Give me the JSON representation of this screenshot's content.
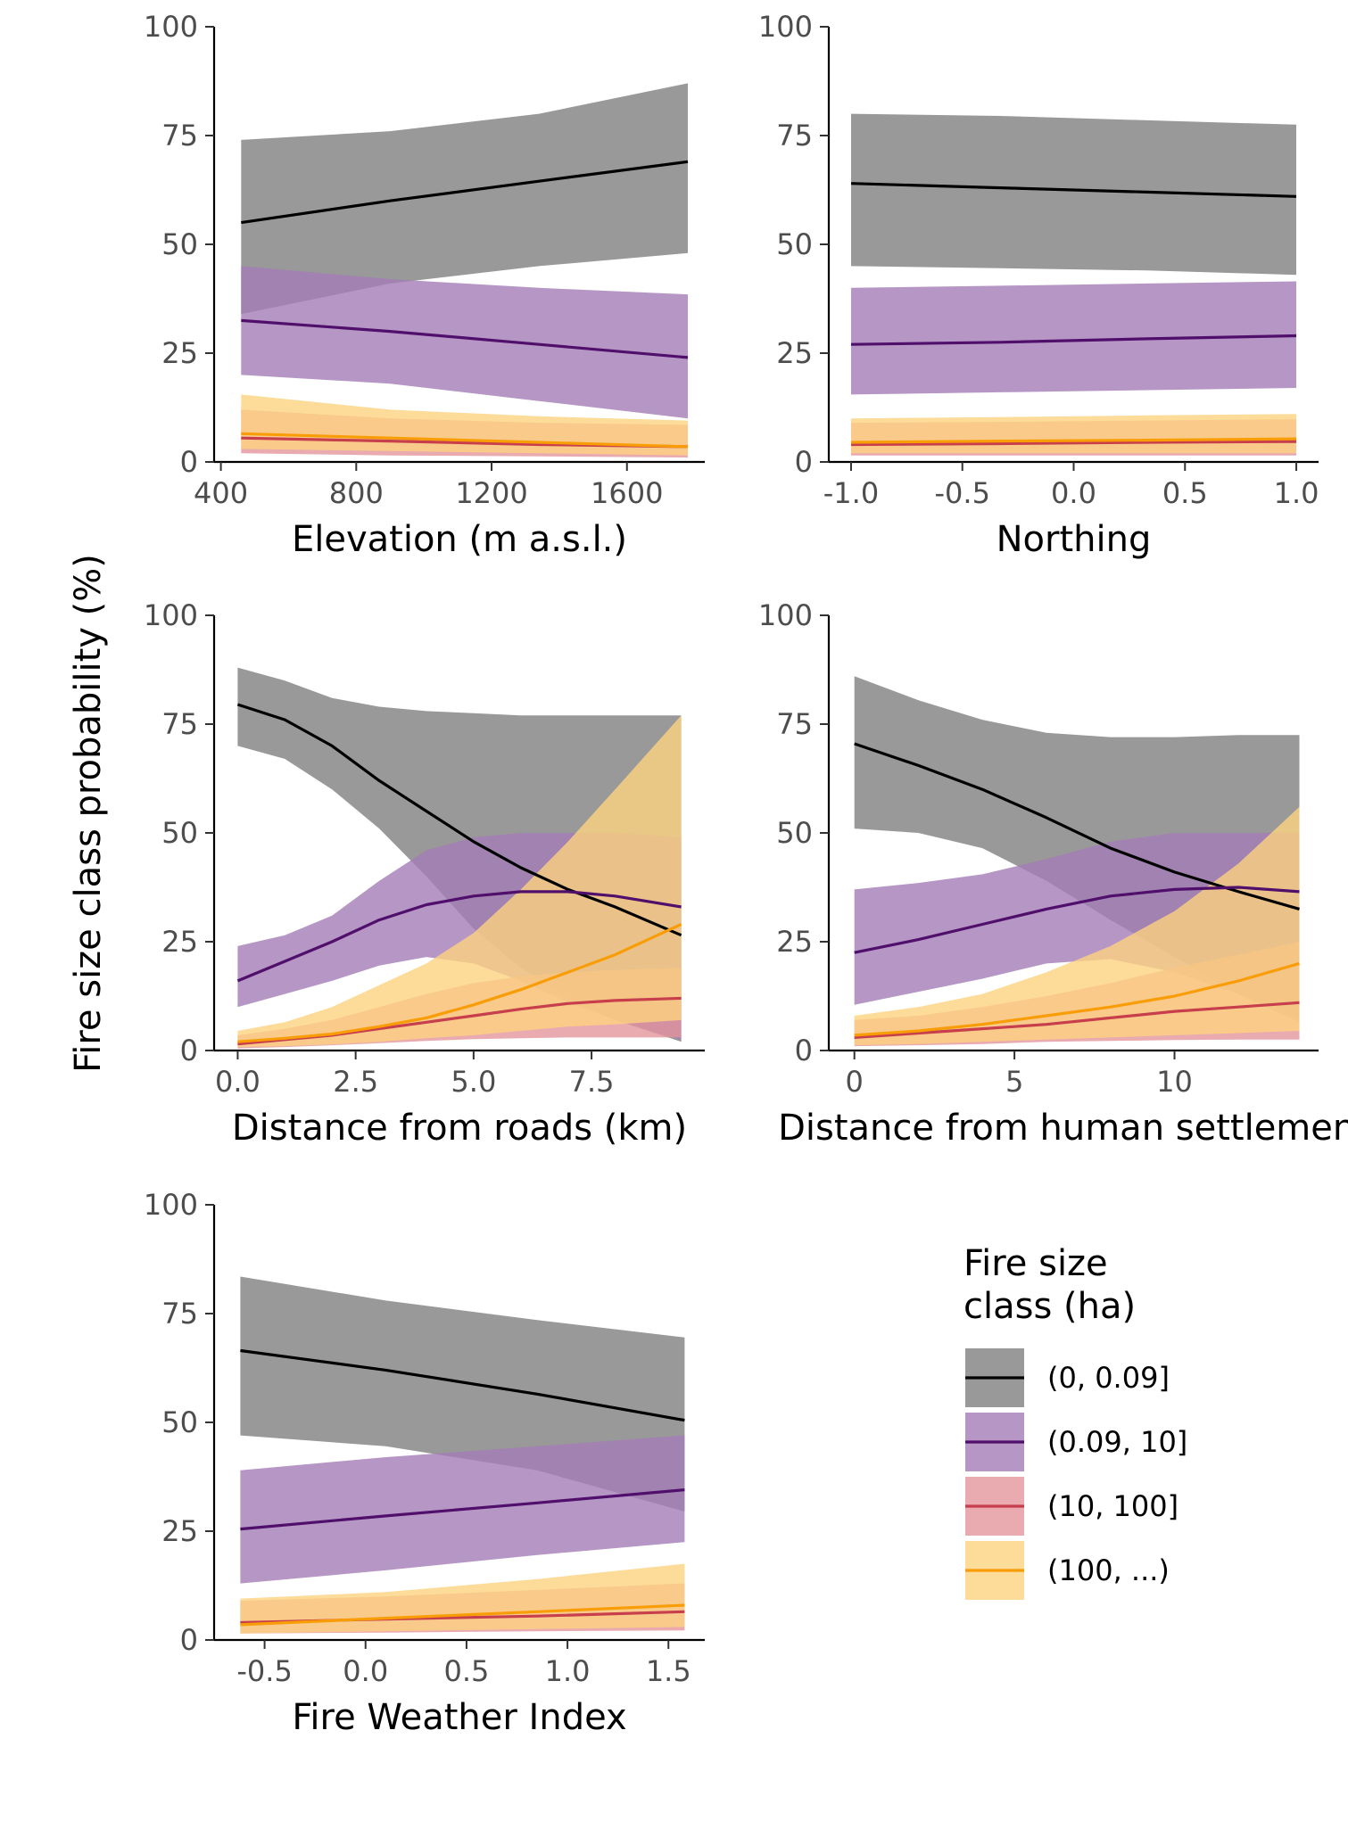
{
  "figure": {
    "ylabel": "Fire size class probability (%)"
  },
  "legend": {
    "title_line1": "Fire size",
    "title_line2": "class (ha)"
  },
  "series_styles": [
    {
      "name": "(0, 0.09]",
      "line": "#000000",
      "band": "#7f7f7f"
    },
    {
      "name": "(0.09, 10]",
      "line": "#4f0f6b",
      "band": "#a27cb6"
    },
    {
      "name": "(10, 100]",
      "line": "#c73e4c",
      "band": "#e4959c"
    },
    {
      "name": "(100, ...)",
      "line": "#f99d07",
      "band": "#fdd27f"
    }
  ],
  "chart_data": [
    {
      "type": "line",
      "xlabel": "Elevation (m a.s.l.)",
      "xlim": [
        380,
        1830
      ],
      "xticks": [
        400,
        800,
        1200,
        1600
      ],
      "xtick_labels": [
        "400",
        "800",
        "1200",
        "1600"
      ],
      "ylim": [
        0,
        100
      ],
      "yticks": [
        0,
        25,
        50,
        75,
        100
      ],
      "x": [
        460,
        900,
        1340,
        1780
      ],
      "series": [
        {
          "name": "(0, 0.09]",
          "mean": [
            55,
            60,
            64.5,
            69
          ],
          "lower": [
            34,
            41,
            45,
            48
          ],
          "upper": [
            74,
            76,
            80,
            87
          ]
        },
        {
          "name": "(0.09, 10]",
          "mean": [
            32.5,
            30,
            27,
            24
          ],
          "lower": [
            20,
            18,
            14,
            10
          ],
          "upper": [
            45,
            42,
            40,
            38.5
          ]
        },
        {
          "name": "(10, 100]",
          "mean": [
            5.5,
            4.8,
            4,
            3.5
          ],
          "lower": [
            2,
            1.5,
            1.3,
            1
          ],
          "upper": [
            12,
            10,
            9,
            8.5
          ]
        },
        {
          "name": "(100, ...)",
          "mean": [
            6.5,
            5.5,
            4.5,
            3.5
          ],
          "lower": [
            3,
            2.5,
            2,
            1.5
          ],
          "upper": [
            15.5,
            12,
            10.5,
            9.5
          ]
        }
      ]
    },
    {
      "type": "line",
      "xlabel": "Northing",
      "xlim": [
        -1.1,
        1.1
      ],
      "xticks": [
        -1.0,
        -0.5,
        0.0,
        0.5,
        1.0
      ],
      "xtick_labels": [
        "-1.0",
        "-0.5",
        "0.0",
        "0.5",
        "1.0"
      ],
      "ylim": [
        0,
        100
      ],
      "yticks": [
        0,
        25,
        50,
        75,
        100
      ],
      "x": [
        -1.0,
        -0.33,
        0.33,
        1.0
      ],
      "series": [
        {
          "name": "(0, 0.09]",
          "mean": [
            64,
            63,
            62,
            61
          ],
          "lower": [
            45,
            44.5,
            44,
            43
          ],
          "upper": [
            80,
            79.5,
            78.5,
            77.5
          ]
        },
        {
          "name": "(0.09, 10]",
          "mean": [
            27,
            27.5,
            28.3,
            29
          ],
          "lower": [
            15.5,
            16,
            16.5,
            17
          ],
          "upper": [
            40,
            40.5,
            41,
            41.5
          ]
        },
        {
          "name": "(10, 100]",
          "mean": [
            4,
            4.2,
            4.5,
            4.7
          ],
          "lower": [
            1.5,
            1.5,
            1.5,
            1.5
          ],
          "upper": [
            9,
            9.2,
            9.5,
            9.8
          ]
        },
        {
          "name": "(100, ...)",
          "mean": [
            4.5,
            4.8,
            5,
            5.3
          ],
          "lower": [
            2,
            2,
            2,
            2
          ],
          "upper": [
            10,
            10.3,
            10.7,
            11
          ]
        }
      ]
    },
    {
      "type": "line",
      "xlabel": "Distance from roads (km)",
      "xlim": [
        -0.5,
        9.9
      ],
      "xticks": [
        0.0,
        2.5,
        5.0,
        7.5
      ],
      "xtick_labels": [
        "0.0",
        "2.5",
        "5.0",
        "7.5"
      ],
      "ylim": [
        0,
        100
      ],
      "yticks": [
        0,
        25,
        50,
        75,
        100
      ],
      "x": [
        0,
        1,
        2,
        3,
        4,
        5,
        6,
        7,
        8,
        9.4
      ],
      "series": [
        {
          "name": "(0, 0.09]",
          "mean": [
            79.5,
            76,
            70,
            62,
            55,
            48,
            42,
            37,
            33,
            26.5
          ],
          "lower": [
            70,
            67,
            60,
            51,
            40,
            28,
            19,
            12,
            7,
            2
          ],
          "upper": [
            88,
            85,
            81,
            79,
            78,
            77.5,
            77,
            77,
            77,
            77
          ]
        },
        {
          "name": "(0.09, 10]",
          "mean": [
            16,
            20.5,
            25,
            30,
            33.5,
            35.5,
            36.5,
            36.5,
            35.5,
            33
          ],
          "lower": [
            10,
            13,
            16,
            19.5,
            21.5,
            20,
            16,
            11,
            7,
            2.5
          ],
          "upper": [
            24,
            26.5,
            31,
            39,
            46,
            49,
            50,
            50,
            50,
            49
          ]
        },
        {
          "name": "(10, 100]",
          "mean": [
            1.5,
            2.5,
            3.5,
            5,
            6.5,
            8,
            9.5,
            10.8,
            11.5,
            12
          ],
          "lower": [
            0.5,
            0.8,
            1.2,
            1.7,
            2.2,
            2.6,
            2.8,
            3,
            3,
            3
          ],
          "upper": [
            3.5,
            5,
            7,
            10,
            13,
            15.5,
            17,
            18,
            18.5,
            19
          ]
        },
        {
          "name": "(100, ...)",
          "mean": [
            2,
            2.8,
            3.8,
            5.5,
            7.5,
            10.5,
            14,
            18,
            22,
            29
          ],
          "lower": [
            0.8,
            1,
            1.4,
            2,
            2.8,
            3.5,
            4.5,
            5.5,
            6,
            7
          ],
          "upper": [
            4.5,
            6.5,
            10,
            15,
            20,
            27,
            37,
            48,
            60,
            77
          ]
        }
      ]
    },
    {
      "type": "line",
      "xlabel": "Distance from human settlement",
      "xlim": [
        -0.8,
        14.5
      ],
      "xticks": [
        0,
        5,
        10
      ],
      "xtick_labels": [
        "0",
        "5",
        "10"
      ],
      "ylim": [
        0,
        100
      ],
      "yticks": [
        0,
        25,
        50,
        75,
        100
      ],
      "x": [
        0,
        2,
        4,
        6,
        8,
        10,
        12,
        13.9
      ],
      "series": [
        {
          "name": "(0, 0.09]",
          "mean": [
            70.5,
            65.5,
            60,
            53.5,
            46.5,
            41,
            36.5,
            32.5
          ],
          "lower": [
            51,
            50,
            46.5,
            39,
            30,
            21.5,
            13,
            6.5
          ],
          "upper": [
            86,
            80.5,
            76,
            73,
            72,
            72,
            72.5,
            72.5
          ]
        },
        {
          "name": "(0.09, 10]",
          "mean": [
            22.5,
            25.5,
            29,
            32.5,
            35.5,
            37,
            37.5,
            36.5
          ],
          "lower": [
            10.5,
            13.5,
            16.5,
            20,
            21,
            18,
            13,
            7.5
          ],
          "upper": [
            37,
            38.5,
            40.5,
            44,
            48,
            50,
            50,
            50
          ]
        },
        {
          "name": "(10, 100]",
          "mean": [
            3,
            4,
            5,
            6,
            7.5,
            9,
            10,
            11
          ],
          "lower": [
            1,
            1.2,
            1.5,
            2,
            2.2,
            2.4,
            2.5,
            2.5
          ],
          "upper": [
            7,
            8,
            10,
            12.5,
            15.5,
            19,
            22,
            25
          ]
        },
        {
          "name": "(100, ...)",
          "mean": [
            3.5,
            4.5,
            6,
            8,
            10,
            12.5,
            16,
            20
          ],
          "lower": [
            1.2,
            1.5,
            2,
            2.5,
            3,
            3.5,
            4,
            4.5
          ],
          "upper": [
            8,
            10,
            13,
            18,
            24,
            32,
            43,
            56
          ]
        }
      ]
    },
    {
      "type": "line",
      "xlabel": "Fire Weather Index",
      "xlim": [
        -0.75,
        1.68
      ],
      "xticks": [
        -0.5,
        0.0,
        0.5,
        1.0,
        1.5
      ],
      "xtick_labels": [
        "-0.5",
        "0.0",
        "0.5",
        "1.0",
        "1.5"
      ],
      "ylim": [
        0,
        100
      ],
      "yticks": [
        0,
        25,
        50,
        75,
        100
      ],
      "x": [
        -0.62,
        0.1,
        0.85,
        1.58
      ],
      "series": [
        {
          "name": "(0, 0.09]",
          "mean": [
            66.5,
            62,
            56.5,
            50.5
          ],
          "lower": [
            47,
            44.5,
            39,
            29.5
          ],
          "upper": [
            83.5,
            78,
            73.5,
            69.5
          ]
        },
        {
          "name": "(0.09, 10]",
          "mean": [
            25.5,
            28.5,
            31.5,
            34.5
          ],
          "lower": [
            13,
            16,
            19.5,
            22.5
          ],
          "upper": [
            39,
            42,
            44.5,
            47
          ]
        },
        {
          "name": "(10, 100]",
          "mean": [
            4,
            4.8,
            5.5,
            6.5
          ],
          "lower": [
            1.5,
            1.7,
            2,
            2.2
          ],
          "upper": [
            9,
            10,
            11.5,
            13
          ]
        },
        {
          "name": "(100, ...)",
          "mean": [
            3.5,
            5,
            6.5,
            8
          ],
          "lower": [
            1.5,
            2,
            2.5,
            3
          ],
          "upper": [
            9.5,
            11,
            14,
            17.5
          ]
        }
      ]
    }
  ]
}
